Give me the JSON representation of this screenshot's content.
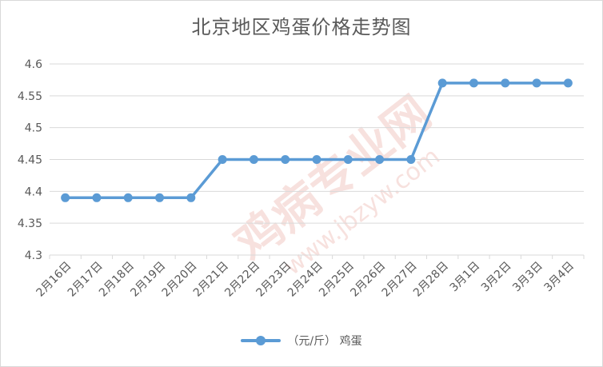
{
  "chart_data": {
    "type": "line",
    "title": "北京地区鸡蛋价格走势图",
    "categories": [
      "2月16日",
      "2月17日",
      "2月18日",
      "2月19日",
      "2月20日",
      "2月21日",
      "2月22日",
      "2月23日",
      "2月24日",
      "2月25日",
      "2月26日",
      "2月27日",
      "2月28日",
      "3月1日",
      "3月2日",
      "3月3日",
      "3月4日"
    ],
    "series": [
      {
        "name": "（元/斤）  鸡蛋",
        "color": "#5b9bd5",
        "values": [
          4.39,
          4.39,
          4.39,
          4.39,
          4.39,
          4.45,
          4.45,
          4.45,
          4.45,
          4.45,
          4.45,
          4.45,
          4.57,
          4.57,
          4.57,
          4.57,
          4.57
        ]
      }
    ],
    "y_ticks": [
      "4.3",
      "4.35",
      "4.4",
      "4.45",
      "4.5",
      "4.55",
      "4.6"
    ],
    "ylim": [
      4.3,
      4.6
    ],
    "grid": true,
    "legend_position": "bottom"
  }
}
